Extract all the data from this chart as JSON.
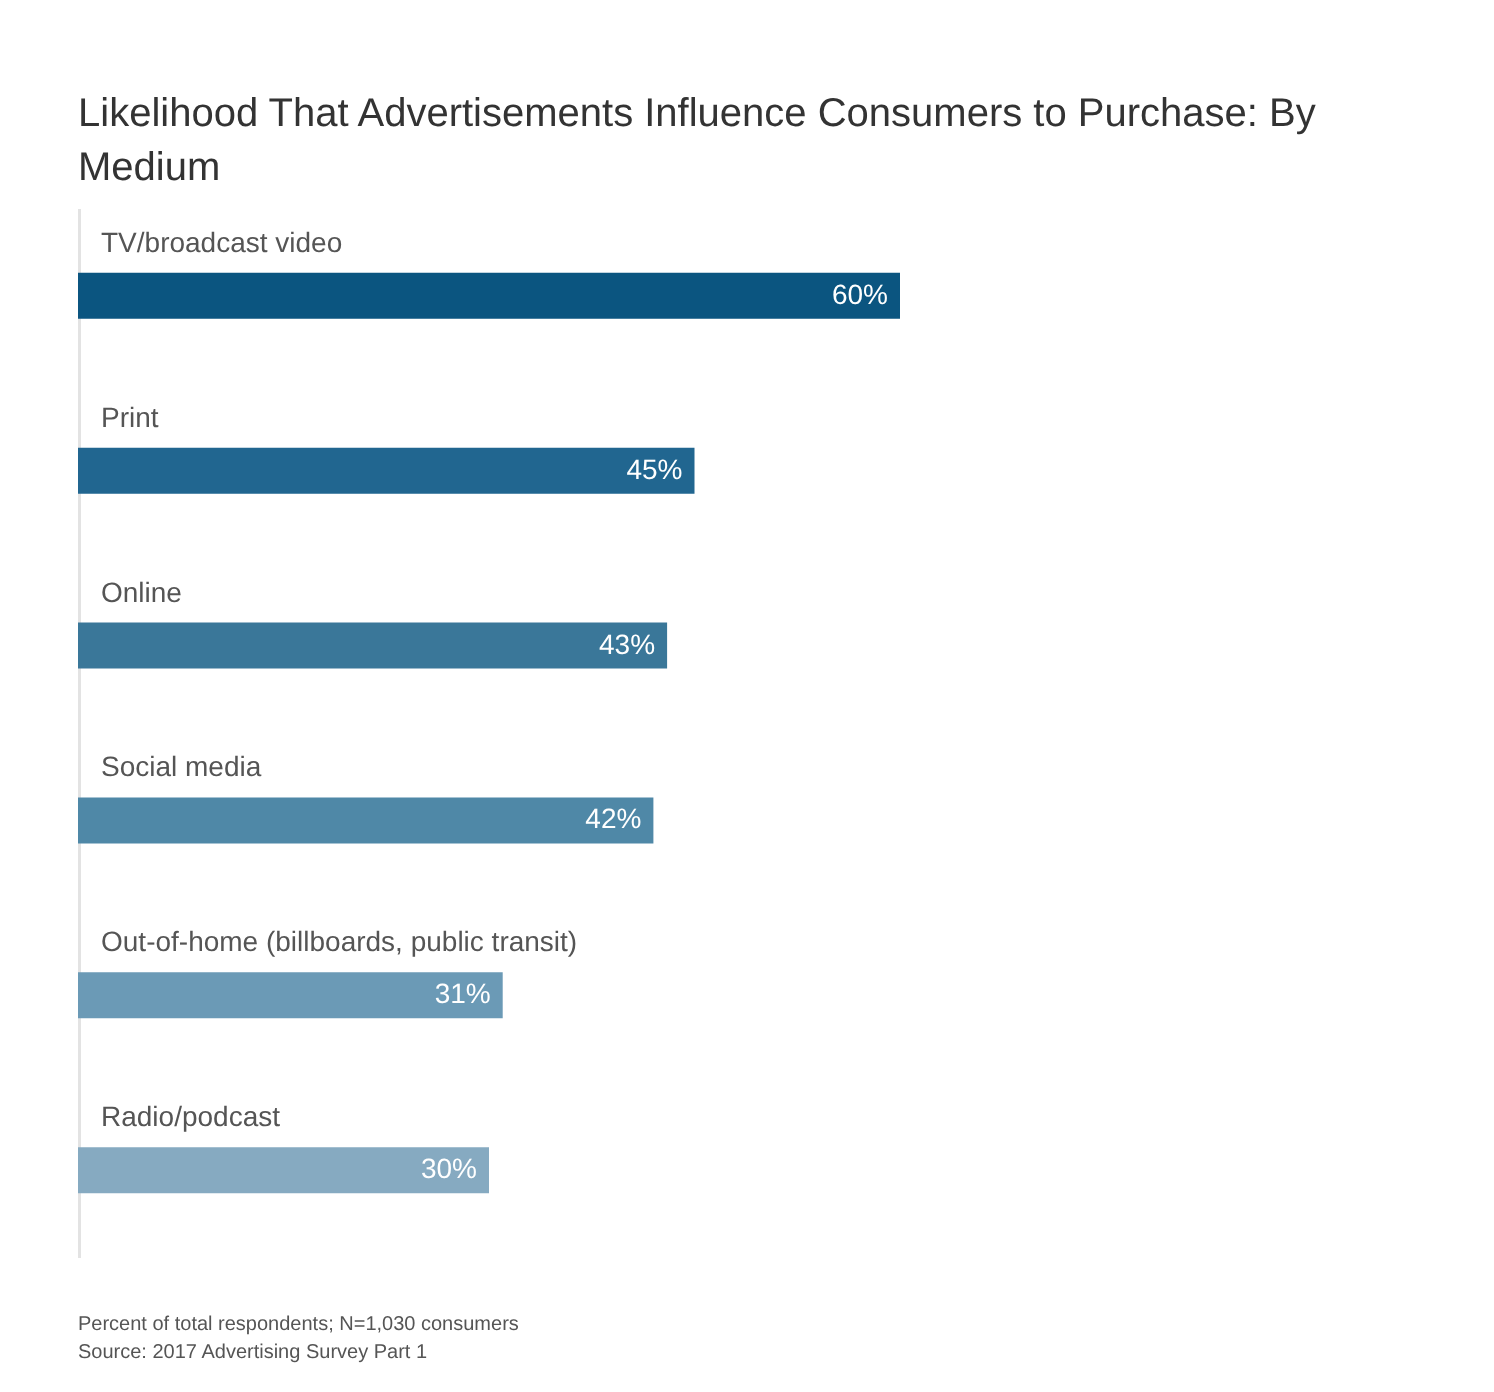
{
  "chart_data": {
    "type": "bar",
    "orientation": "horizontal",
    "title": "Likelihood That Advertisements Influence Consumers to Purchase: By Medium",
    "categories": [
      "TV/broadcast video",
      "Print",
      "Online",
      "Social media",
      "Out-of-home (billboards, public transit)",
      "Radio/podcast"
    ],
    "values": [
      60,
      45,
      43,
      42,
      31,
      30
    ],
    "colors": [
      "#0b5580",
      "#216690",
      "#3a7799",
      "#4f88a7",
      "#6b9ab6",
      "#86aac1"
    ],
    "value_labels": [
      "60%",
      "45%",
      "43%",
      "42%",
      "31%",
      "30%"
    ],
    "annotations": [
      "Percent of total respondents; N=1,030 consumers",
      "Source: 2017 Advertising Survey Part 1"
    ]
  }
}
